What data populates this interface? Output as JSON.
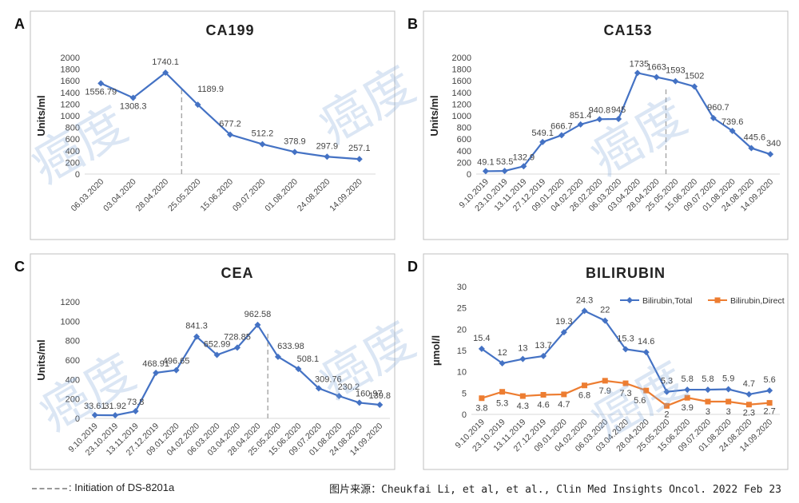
{
  "footer": {
    "legend_label": ": Initiation of DS-8201a",
    "source": "图片来源：Cheukfai Li, et al, et al., Clin Med Insights Oncol. 2022 Feb 23"
  },
  "watermark": "癌度",
  "colors": {
    "series1": "#4472C4",
    "series2": "#ED7D31",
    "dash": "#a6a6a6"
  },
  "chart_data": [
    {
      "panel": "A",
      "type": "line",
      "title": "CA199",
      "ylabel": "Units/ml",
      "ylim": [
        0,
        2000
      ],
      "yticks": [
        0,
        200,
        400,
        600,
        800,
        1000,
        1200,
        1400,
        1600,
        1800,
        2000
      ],
      "categories": [
        "06.03.2020",
        "03.04.2020",
        "28.04.2020",
        "25.05.2020",
        "15.06.2020",
        "09.07.2020",
        "01.08.2020",
        "24.08.2020",
        "14.09.2020"
      ],
      "series": [
        {
          "values": [
            1556.79,
            1308.3,
            1740.1,
            1189.9,
            677.2,
            512.2,
            378.9,
            297.9,
            257.1
          ],
          "labels": [
            "1556.79",
            "1308.3",
            "1740.1",
            "1189.9",
            "677.2",
            "512.2",
            "378.9",
            "297.9",
            "257.1"
          ]
        }
      ],
      "initiation_after": "28.04.2020"
    },
    {
      "panel": "B",
      "type": "line",
      "title": "CA153",
      "ylabel": "Units/ml",
      "ylim": [
        0,
        2000
      ],
      "yticks": [
        0,
        200,
        400,
        600,
        800,
        1000,
        1200,
        1400,
        1600,
        1800,
        2000
      ],
      "categories": [
        "9.10.2019",
        "23.10.2019",
        "13.11.2019",
        "27.12.2019",
        "09.01.2020",
        "04.02.2020",
        "26.02.2020",
        "06.03.2020",
        "03.04.2020",
        "28.04.2020",
        "25.05.2020",
        "15.06.2020",
        "09.07.2020",
        "01.08.2020",
        "24.08.2020",
        "14.09.2020"
      ],
      "series": [
        {
          "values": [
            49.1,
            53.5,
            132.9,
            549.1,
            666.7,
            851.4,
            940.8,
            945,
            1735,
            1663,
            1593,
            1502,
            960.7,
            739.6,
            445.6,
            340
          ],
          "labels": [
            "49.1",
            "53.5",
            "132.9",
            "549.1",
            "666.7",
            "851.4",
            "940.8",
            "945",
            "1735",
            "1663",
            "1593",
            "1502",
            "960.7",
            "739.6",
            "445.6",
            "340"
          ]
        }
      ],
      "initiation_after": "28.04.2020"
    },
    {
      "panel": "C",
      "type": "line",
      "title": "CEA",
      "ylabel": "Units/ml",
      "ylim": [
        0,
        1200
      ],
      "yticks": [
        0,
        200,
        400,
        600,
        800,
        1000,
        1200
      ],
      "categories": [
        "9.10.2019",
        "23.10.2019",
        "13.11.2019",
        "27.12.2019",
        "09.01.2020",
        "04.02.2020",
        "06.03.2020",
        "03.04.2020",
        "28.04.2020",
        "25.05.2020",
        "15.06.2020",
        "09.07.2020",
        "01.08.2020",
        "24.08.2020",
        "14.09.2020"
      ],
      "series": [
        {
          "values": [
            33.61,
            31.92,
            73.8,
            468.91,
            496.65,
            841.3,
            652.99,
            728.85,
            962.58,
            633.98,
            508.1,
            309.76,
            230.2,
            160.97,
            139.8
          ],
          "labels": [
            "33.61",
            "31.92",
            "73.8",
            "468.91",
            "496.65",
            "841.3",
            "652.99",
            "728.85",
            "962.58",
            "633.98",
            "508.1",
            "309.76",
            "230.2",
            "160.97",
            "139.8"
          ]
        }
      ],
      "initiation_after": "28.04.2020"
    },
    {
      "panel": "D",
      "type": "line",
      "title": "BILIRUBIN",
      "ylabel": "μmol/l",
      "ylim": [
        0,
        30
      ],
      "yticks": [
        0,
        5,
        10,
        15,
        20,
        25,
        30
      ],
      "categories": [
        "9.10.2019",
        "23.10.2019",
        "13.11.2019",
        "27.12.2019",
        "09.01.2020",
        "04.02.2020",
        "06.03.2020",
        "03.04.2020",
        "28.04.2020",
        "25.05.2020",
        "15.06.2020",
        "09.07.2020",
        "01.08.2020",
        "24.08.2020",
        "14.09.2020"
      ],
      "legend_position": "top-right",
      "series": [
        {
          "name": "Bilirubin,Total",
          "values": [
            15.4,
            12,
            13,
            13.7,
            19.3,
            24.3,
            22,
            15.3,
            14.6,
            5.3,
            5.8,
            5.8,
            5.9,
            4.7,
            5.6
          ],
          "labels": [
            "15.4",
            "12",
            "13",
            "13.7",
            "19.3",
            "24.3",
            "22",
            "15.3",
            "14.6",
            "5.3",
            "5.8",
            "5.8",
            "5.9",
            "4.7",
            "5.6"
          ]
        },
        {
          "name": "Bilirubin,Direct",
          "values": [
            3.8,
            5.3,
            4.3,
            4.6,
            4.7,
            6.8,
            7.9,
            7.3,
            5.6,
            2,
            3.9,
            3,
            3,
            2.3,
            2.7
          ],
          "labels": [
            "3.8",
            "5.3",
            "4.3",
            "4.6",
            "4.7",
            "6.8",
            "7.9",
            "7.3",
            "5.6",
            "2",
            "3.9",
            "3",
            "3",
            "2.3",
            "2.7"
          ]
        }
      ]
    }
  ]
}
